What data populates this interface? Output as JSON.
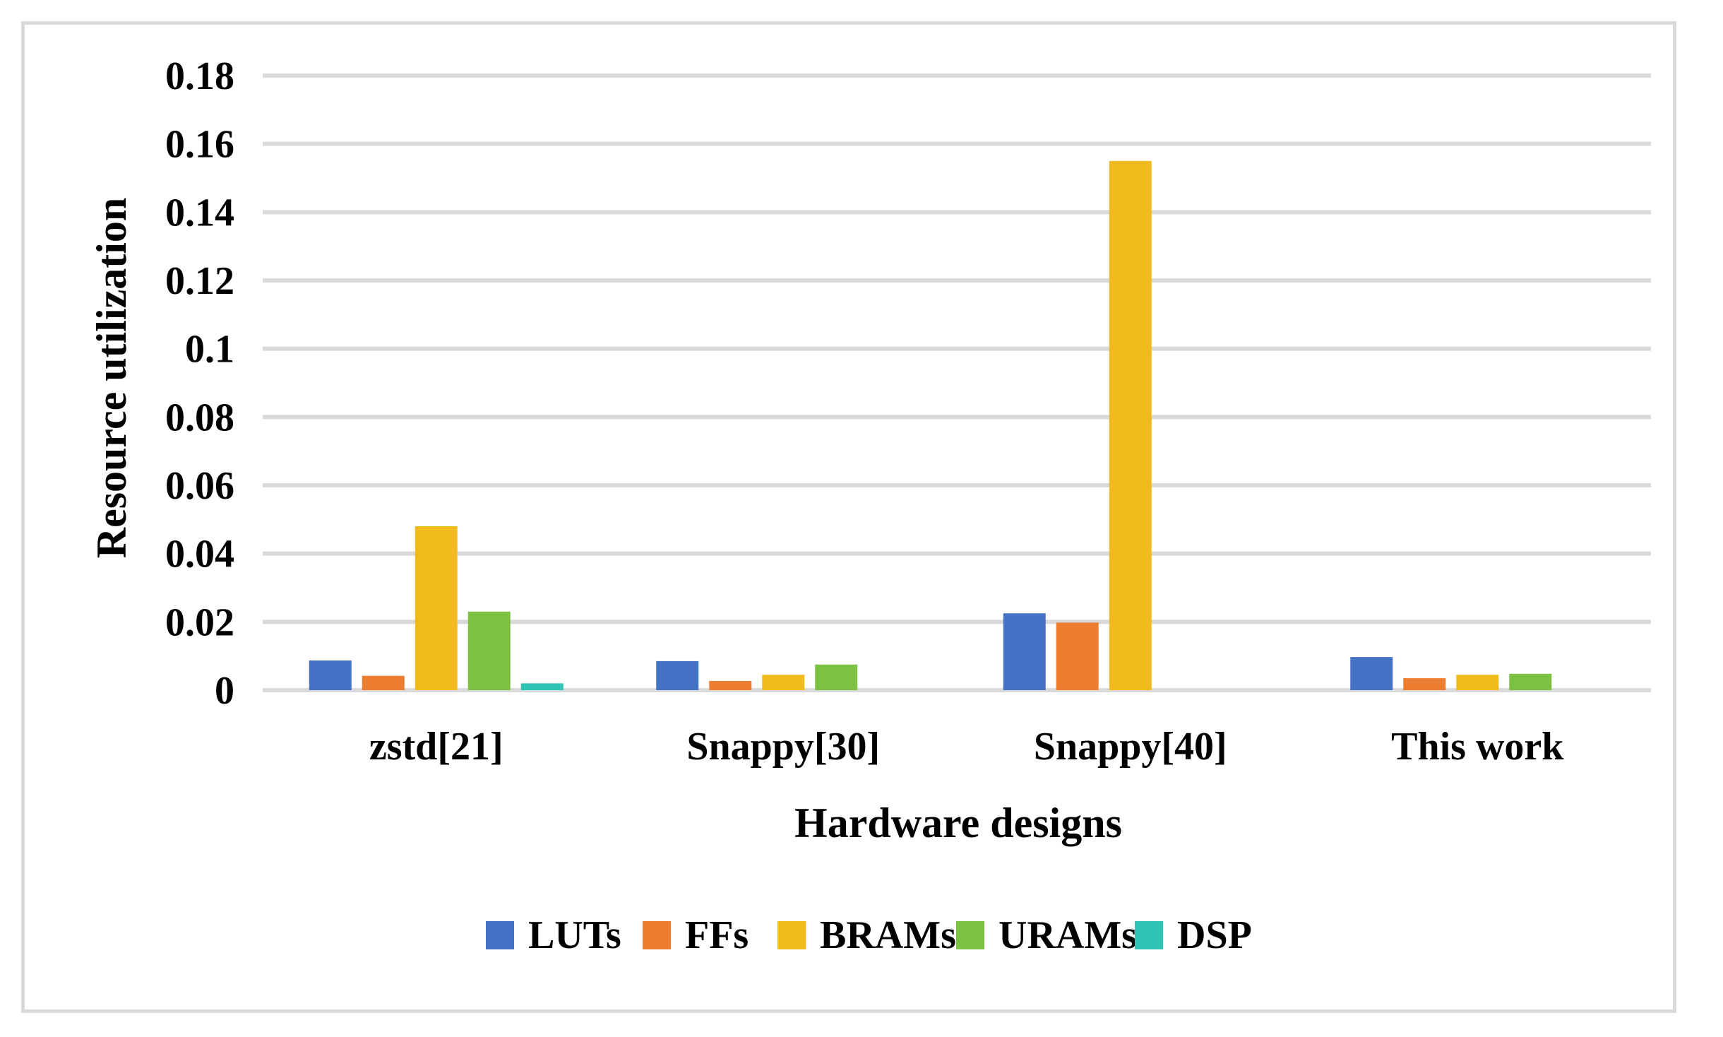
{
  "chart_data": {
    "type": "bar",
    "categories": [
      "zstd[21]",
      "Snappy[30]",
      "Snappy[40]",
      "This work"
    ],
    "series": [
      {
        "name": "LUTs",
        "color": "#4472c4",
        "values": [
          0.0087,
          0.0085,
          0.0225,
          0.0097
        ]
      },
      {
        "name": "FFs",
        "color": "#ed7d31",
        "values": [
          0.0042,
          0.0027,
          0.0198,
          0.0035
        ]
      },
      {
        "name": "BRAMs",
        "color": "#f2bb1d",
        "values": [
          0.048,
          0.0045,
          0.155,
          0.0045
        ]
      },
      {
        "name": "URAMs",
        "color": "#7cc142",
        "values": [
          0.023,
          0.0075,
          0,
          0.0048
        ]
      },
      {
        "name": "DSP",
        "color": "#2ec4b6",
        "values": [
          0.002,
          0,
          0,
          0
        ]
      }
    ],
    "yticks": [
      "0",
      "0.02",
      "0.04",
      "0.06",
      "0.08",
      "0.1",
      "0.12",
      "0.14",
      "0.16",
      "0.18"
    ],
    "ylim": [
      0,
      0.18
    ],
    "xlabel": "Hardware designs",
    "ylabel": "Resource utilization",
    "grid": true,
    "legend_position": "bottom"
  }
}
